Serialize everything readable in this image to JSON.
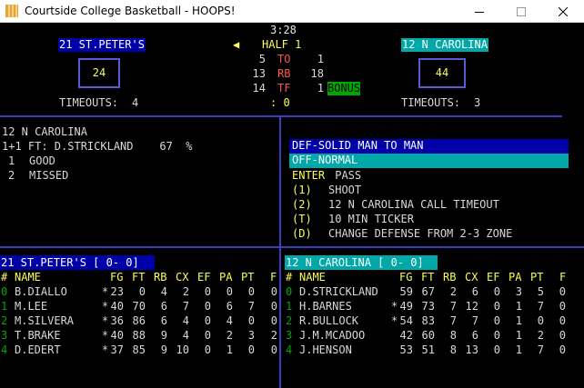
{
  "window": {
    "title": "Courtside College Basketball - HOOPS!"
  },
  "colors": {
    "away_band": "#0000a8",
    "home_band": "#00a8a8",
    "yellow": "#fcfc54",
    "red": "#fc5454",
    "green": "#00a800",
    "selected_menu": "#0000a8",
    "highlight_menu": "#00a8a8",
    "divider": "#3d3dc4"
  },
  "scoreboard": {
    "clock": "3:28",
    "arrow": "◀",
    "half": "HALF 1",
    "away": {
      "name": "21 ST.PETER'S",
      "score": "24",
      "timeouts_label": "TIMEOUTS:",
      "timeouts": "4"
    },
    "home": {
      "name": "12 N CAROLINA",
      "score": "44",
      "timeouts_label": "TIMEOUTS:",
      "timeouts": "3"
    },
    "stats": [
      {
        "away": "5",
        "label": "TO",
        "home": "1"
      },
      {
        "away": "13",
        "label": "RB",
        "home": "18"
      },
      {
        "away": "14",
        "label": "TF",
        "home": "1"
      }
    ],
    "bonus": "BONUS",
    "possession": ": 0"
  },
  "play_panel": {
    "team": "12 N CAROLINA",
    "situation": "1+1 FT: D.STRICKLAND    67  %",
    "options": [
      {
        "num": "1",
        "label": "GOOD"
      },
      {
        "num": "2",
        "label": "MISSED"
      }
    ]
  },
  "menu": {
    "defense": "DEF-SOLID MAN TO MAN",
    "offense": "OFF-NORMAL",
    "enter_key": "ENTER",
    "enter_label": " PASS",
    "items": [
      {
        "key": "(1)",
        "label": "SHOOT"
      },
      {
        "key": "(2)",
        "label": "12 N CAROLINA CALL TIMEOUT"
      },
      {
        "key": "(T)",
        "label": "10 MIN TICKER"
      },
      {
        "key": "(D)",
        "label": "CHANGE DEFENSE FROM 2-3 ZONE"
      }
    ]
  },
  "away_table": {
    "title": "21 ST.PETER'S [ 0- 0]",
    "headers": [
      "#",
      "NAME",
      "FG",
      "FT",
      "RB",
      "CX",
      "EF",
      "PA",
      "PT",
      "F"
    ],
    "rows": [
      {
        "num": "0",
        "name": "B.DIALLO",
        "star": "*",
        "fg": "23",
        "ft": "0",
        "rb": "4",
        "cx": "2",
        "ef": "0",
        "pa": "0",
        "pt": "0",
        "f": "0"
      },
      {
        "num": "1",
        "name": "M.LEE",
        "star": "*",
        "fg": "40",
        "ft": "70",
        "rb": "6",
        "cx": "7",
        "ef": "0",
        "pa": "6",
        "pt": "7",
        "f": "0"
      },
      {
        "num": "2",
        "name": "M.SILVERA",
        "star": "*",
        "fg": "36",
        "ft": "86",
        "rb": "6",
        "cx": "4",
        "ef": "0",
        "pa": "4",
        "pt": "0",
        "f": "0"
      },
      {
        "num": "3",
        "name": "T.BRAKE",
        "star": "*",
        "fg": "40",
        "ft": "88",
        "rb": "9",
        "cx": "4",
        "ef": "0",
        "pa": "2",
        "pt": "3",
        "f": "2"
      },
      {
        "num": "4",
        "name": "D.EDERT",
        "star": "*",
        "fg": "37",
        "ft": "85",
        "rb": "9",
        "cx": "10",
        "ef": "0",
        "pa": "1",
        "pt": "0",
        "f": "0"
      }
    ]
  },
  "home_table": {
    "title": "12 N CAROLINA [ 0- 0]",
    "headers": [
      "#",
      "NAME",
      "FG",
      "FT",
      "RB",
      "CX",
      "EF",
      "PA",
      "PT",
      "F"
    ],
    "rows": [
      {
        "num": "0",
        "name": "D.STRICKLAND",
        "star": "",
        "fg": "59",
        "ft": "67",
        "rb": "2",
        "cx": "6",
        "ef": "0",
        "pa": "3",
        "pt": "5",
        "f": "0"
      },
      {
        "num": "1",
        "name": "H.BARNES",
        "star": "*",
        "fg": "49",
        "ft": "73",
        "rb": "7",
        "cx": "12",
        "ef": "0",
        "pa": "1",
        "pt": "7",
        "f": "0"
      },
      {
        "num": "2",
        "name": "R.BULLOCK",
        "star": "*",
        "fg": "54",
        "ft": "83",
        "rb": "7",
        "cx": "7",
        "ef": "0",
        "pa": "1",
        "pt": "0",
        "f": "0"
      },
      {
        "num": "3",
        "name": "J.M.MCADOO",
        "star": "",
        "fg": "42",
        "ft": "60",
        "rb": "8",
        "cx": "6",
        "ef": "0",
        "pa": "1",
        "pt": "2",
        "f": "0"
      },
      {
        "num": "4",
        "name": "J.HENSON",
        "star": "",
        "fg": "53",
        "ft": "51",
        "rb": "8",
        "cx": "13",
        "ef": "0",
        "pa": "1",
        "pt": "7",
        "f": "0"
      }
    ]
  }
}
